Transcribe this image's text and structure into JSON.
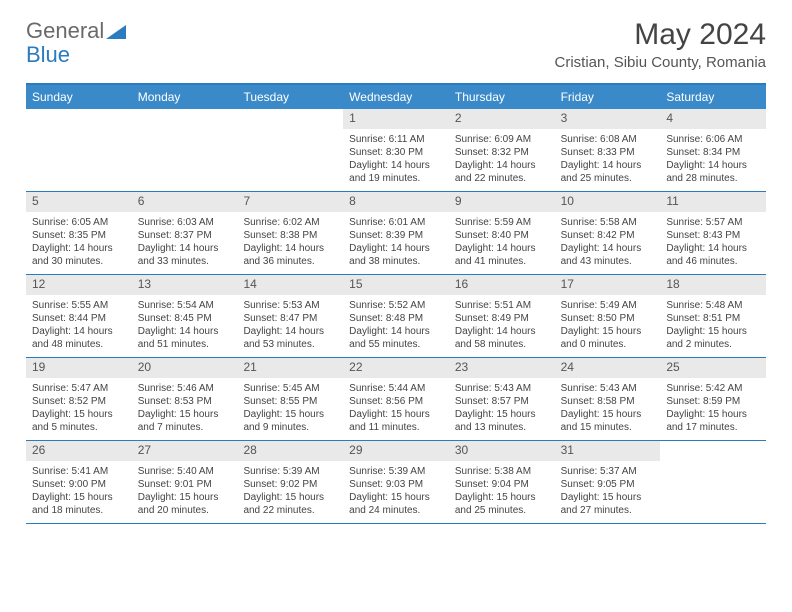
{
  "brand": {
    "part1": "General",
    "part2": "Blue"
  },
  "title": "May 2024",
  "location": "Cristian, Sibiu County, Romania",
  "colors": {
    "header_bg": "#3a8ac9",
    "accent": "#2b7bbf",
    "daynum_bg": "#e9e9e9",
    "text": "#444444",
    "logo_gray": "#6a6a6a"
  },
  "dayNames": [
    "Sunday",
    "Monday",
    "Tuesday",
    "Wednesday",
    "Thursday",
    "Friday",
    "Saturday"
  ],
  "weeks": [
    [
      {
        "n": "",
        "sr": "",
        "ss": "",
        "dl": ""
      },
      {
        "n": "",
        "sr": "",
        "ss": "",
        "dl": ""
      },
      {
        "n": "",
        "sr": "",
        "ss": "",
        "dl": ""
      },
      {
        "n": "1",
        "sr": "Sunrise: 6:11 AM",
        "ss": "Sunset: 8:30 PM",
        "dl": "Daylight: 14 hours and 19 minutes."
      },
      {
        "n": "2",
        "sr": "Sunrise: 6:09 AM",
        "ss": "Sunset: 8:32 PM",
        "dl": "Daylight: 14 hours and 22 minutes."
      },
      {
        "n": "3",
        "sr": "Sunrise: 6:08 AM",
        "ss": "Sunset: 8:33 PM",
        "dl": "Daylight: 14 hours and 25 minutes."
      },
      {
        "n": "4",
        "sr": "Sunrise: 6:06 AM",
        "ss": "Sunset: 8:34 PM",
        "dl": "Daylight: 14 hours and 28 minutes."
      }
    ],
    [
      {
        "n": "5",
        "sr": "Sunrise: 6:05 AM",
        "ss": "Sunset: 8:35 PM",
        "dl": "Daylight: 14 hours and 30 minutes."
      },
      {
        "n": "6",
        "sr": "Sunrise: 6:03 AM",
        "ss": "Sunset: 8:37 PM",
        "dl": "Daylight: 14 hours and 33 minutes."
      },
      {
        "n": "7",
        "sr": "Sunrise: 6:02 AM",
        "ss": "Sunset: 8:38 PM",
        "dl": "Daylight: 14 hours and 36 minutes."
      },
      {
        "n": "8",
        "sr": "Sunrise: 6:01 AM",
        "ss": "Sunset: 8:39 PM",
        "dl": "Daylight: 14 hours and 38 minutes."
      },
      {
        "n": "9",
        "sr": "Sunrise: 5:59 AM",
        "ss": "Sunset: 8:40 PM",
        "dl": "Daylight: 14 hours and 41 minutes."
      },
      {
        "n": "10",
        "sr": "Sunrise: 5:58 AM",
        "ss": "Sunset: 8:42 PM",
        "dl": "Daylight: 14 hours and 43 minutes."
      },
      {
        "n": "11",
        "sr": "Sunrise: 5:57 AM",
        "ss": "Sunset: 8:43 PM",
        "dl": "Daylight: 14 hours and 46 minutes."
      }
    ],
    [
      {
        "n": "12",
        "sr": "Sunrise: 5:55 AM",
        "ss": "Sunset: 8:44 PM",
        "dl": "Daylight: 14 hours and 48 minutes."
      },
      {
        "n": "13",
        "sr": "Sunrise: 5:54 AM",
        "ss": "Sunset: 8:45 PM",
        "dl": "Daylight: 14 hours and 51 minutes."
      },
      {
        "n": "14",
        "sr": "Sunrise: 5:53 AM",
        "ss": "Sunset: 8:47 PM",
        "dl": "Daylight: 14 hours and 53 minutes."
      },
      {
        "n": "15",
        "sr": "Sunrise: 5:52 AM",
        "ss": "Sunset: 8:48 PM",
        "dl": "Daylight: 14 hours and 55 minutes."
      },
      {
        "n": "16",
        "sr": "Sunrise: 5:51 AM",
        "ss": "Sunset: 8:49 PM",
        "dl": "Daylight: 14 hours and 58 minutes."
      },
      {
        "n": "17",
        "sr": "Sunrise: 5:49 AM",
        "ss": "Sunset: 8:50 PM",
        "dl": "Daylight: 15 hours and 0 minutes."
      },
      {
        "n": "18",
        "sr": "Sunrise: 5:48 AM",
        "ss": "Sunset: 8:51 PM",
        "dl": "Daylight: 15 hours and 2 minutes."
      }
    ],
    [
      {
        "n": "19",
        "sr": "Sunrise: 5:47 AM",
        "ss": "Sunset: 8:52 PM",
        "dl": "Daylight: 15 hours and 5 minutes."
      },
      {
        "n": "20",
        "sr": "Sunrise: 5:46 AM",
        "ss": "Sunset: 8:53 PM",
        "dl": "Daylight: 15 hours and 7 minutes."
      },
      {
        "n": "21",
        "sr": "Sunrise: 5:45 AM",
        "ss": "Sunset: 8:55 PM",
        "dl": "Daylight: 15 hours and 9 minutes."
      },
      {
        "n": "22",
        "sr": "Sunrise: 5:44 AM",
        "ss": "Sunset: 8:56 PM",
        "dl": "Daylight: 15 hours and 11 minutes."
      },
      {
        "n": "23",
        "sr": "Sunrise: 5:43 AM",
        "ss": "Sunset: 8:57 PM",
        "dl": "Daylight: 15 hours and 13 minutes."
      },
      {
        "n": "24",
        "sr": "Sunrise: 5:43 AM",
        "ss": "Sunset: 8:58 PM",
        "dl": "Daylight: 15 hours and 15 minutes."
      },
      {
        "n": "25",
        "sr": "Sunrise: 5:42 AM",
        "ss": "Sunset: 8:59 PM",
        "dl": "Daylight: 15 hours and 17 minutes."
      }
    ],
    [
      {
        "n": "26",
        "sr": "Sunrise: 5:41 AM",
        "ss": "Sunset: 9:00 PM",
        "dl": "Daylight: 15 hours and 18 minutes."
      },
      {
        "n": "27",
        "sr": "Sunrise: 5:40 AM",
        "ss": "Sunset: 9:01 PM",
        "dl": "Daylight: 15 hours and 20 minutes."
      },
      {
        "n": "28",
        "sr": "Sunrise: 5:39 AM",
        "ss": "Sunset: 9:02 PM",
        "dl": "Daylight: 15 hours and 22 minutes."
      },
      {
        "n": "29",
        "sr": "Sunrise: 5:39 AM",
        "ss": "Sunset: 9:03 PM",
        "dl": "Daylight: 15 hours and 24 minutes."
      },
      {
        "n": "30",
        "sr": "Sunrise: 5:38 AM",
        "ss": "Sunset: 9:04 PM",
        "dl": "Daylight: 15 hours and 25 minutes."
      },
      {
        "n": "31",
        "sr": "Sunrise: 5:37 AM",
        "ss": "Sunset: 9:05 PM",
        "dl": "Daylight: 15 hours and 27 minutes."
      },
      {
        "n": "",
        "sr": "",
        "ss": "",
        "dl": ""
      }
    ]
  ]
}
